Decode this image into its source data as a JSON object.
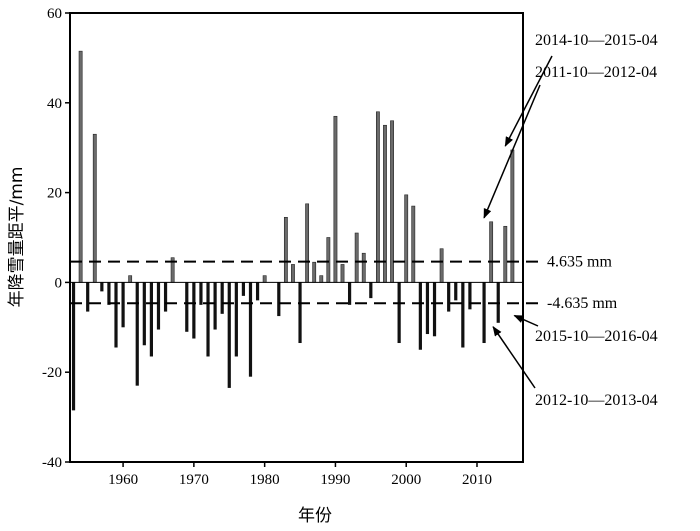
{
  "chart_data": {
    "type": "bar",
    "xlabel": "年份",
    "ylabel": "年降雪量距平/mm",
    "xlim": [
      1952.5,
      2016.5
    ],
    "ylim": [
      -40,
      60
    ],
    "x_ticks": [
      1960,
      1970,
      1980,
      1990,
      2000,
      2010
    ],
    "x_tick_labels": [
      "1960",
      "1970",
      "1980",
      "1990",
      "2000",
      "2010"
    ],
    "y_ticks": [
      -40,
      -20,
      0,
      20,
      40,
      60
    ],
    "y_tick_labels": [
      "-40",
      "-20",
      "0",
      "20",
      "40",
      "60"
    ],
    "grid": false,
    "colors": {
      "positive": "#6b6b6b",
      "negative": "#111111",
      "axis": "#000000"
    },
    "years": [
      1953,
      1954,
      1955,
      1956,
      1957,
      1958,
      1959,
      1960,
      1961,
      1962,
      1963,
      1964,
      1965,
      1966,
      1967,
      1968,
      1969,
      1970,
      1971,
      1972,
      1973,
      1974,
      1975,
      1976,
      1977,
      1978,
      1979,
      1980,
      1981,
      1982,
      1983,
      1984,
      1985,
      1986,
      1987,
      1988,
      1989,
      1990,
      1991,
      1992,
      1993,
      1994,
      1995,
      1996,
      1997,
      1998,
      1999,
      2000,
      2001,
      2002,
      2003,
      2004,
      2005,
      2006,
      2007,
      2008,
      2009,
      2010,
      2011,
      2012,
      2013,
      2014,
      2015
    ],
    "values": [
      -28.5,
      51.5,
      -6.5,
      33,
      -2,
      -5,
      -14.5,
      -10,
      1.5,
      -23,
      -14,
      -16.5,
      -10.5,
      -6.5,
      5.5,
      0,
      -11,
      -12.5,
      -5,
      -16.5,
      -10.5,
      -7,
      -23.5,
      -16.5,
      -3,
      -21,
      -4,
      1.5,
      0,
      -7.5,
      14.5,
      4,
      -13.5,
      17.5,
      4.5,
      1.5,
      10,
      37,
      4,
      -5,
      11,
      6.5,
      -3.5,
      38,
      35,
      36,
      -13.5,
      19.5,
      17,
      -15,
      -11.5,
      -12,
      7.5,
      -6.5,
      -4,
      -14.5,
      -6,
      0,
      -13.5,
      13.5,
      -9,
      12.5,
      29.5
    ],
    "reference_lines": [
      {
        "value": 4.635,
        "label": "4.635 mm",
        "style": "dashed"
      },
      {
        "value": -4.635,
        "label": "-4.635 mm",
        "style": "dashed"
      }
    ],
    "annotations": [
      {
        "text": "2014-10—2015-04",
        "year": 2014,
        "value": 29.5
      },
      {
        "text": "2011-10—2012-04",
        "year": 2011,
        "value": 13.5
      },
      {
        "text": "2015-10—2016-04",
        "year": 2015,
        "value": -6.5
      },
      {
        "text": "2012-10—2013-04",
        "year": 2012,
        "value": -9
      }
    ]
  }
}
